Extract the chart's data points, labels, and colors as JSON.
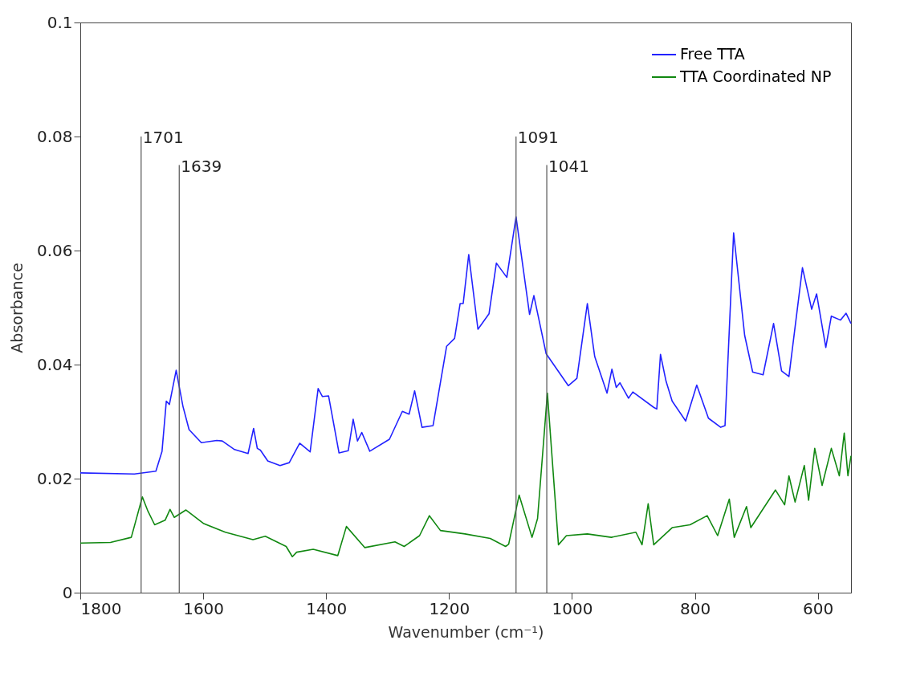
{
  "chart_data": {
    "type": "line",
    "xlabel": "Wavenumber (cm⁻¹)",
    "ylabel": "Absorbance",
    "xlim": [
      1800,
      546
    ],
    "xticks": [
      1800,
      1600,
      1400,
      1200,
      1000,
      800,
      600
    ],
    "ylim": [
      0,
      0.1
    ],
    "yticks": [
      0,
      0.02,
      0.04,
      0.06,
      0.08,
      0.1
    ],
    "grid": false,
    "legend": "top right",
    "line_style": "solid",
    "ref_lines": [
      {
        "axis": "x",
        "value": 1701,
        "label": "1701",
        "color": "#555555"
      },
      {
        "axis": "x",
        "value": 1639,
        "label": "1639",
        "color": "#555555"
      },
      {
        "axis": "x",
        "value": 1091,
        "label": "1091",
        "color": "#555555"
      },
      {
        "axis": "x",
        "value": 1041,
        "label": "1041",
        "color": "#555555"
      }
    ],
    "series": [
      {
        "name": "Free TTA",
        "color": "#2222ff",
        "x": [
          1800,
          1712,
          1677,
          1667,
          1660,
          1655,
          1644,
          1633,
          1623,
          1603,
          1578,
          1569,
          1549,
          1527,
          1518,
          1512,
          1507,
          1495,
          1475,
          1460,
          1443,
          1426,
          1413,
          1406,
          1396,
          1379,
          1364,
          1356,
          1349,
          1342,
          1329,
          1297,
          1276,
          1265,
          1256,
          1244,
          1226,
          1204,
          1191,
          1182,
          1177,
          1168,
          1153,
          1135,
          1123,
          1106,
          1091,
          1069,
          1062,
          1042,
          1006,
          992,
          975,
          963,
          943,
          935,
          928,
          922,
          908,
          901,
          867,
          862,
          856,
          847,
          837,
          815,
          797,
          778,
          758,
          751,
          737,
          719,
          706,
          689,
          672,
          659,
          647,
          625,
          610,
          602,
          587,
          578,
          563,
          554,
          546
        ],
        "values": [
          0.021,
          0.0208,
          0.0213,
          0.0248,
          0.0336,
          0.033,
          0.039,
          0.0327,
          0.0286,
          0.0263,
          0.0267,
          0.0266,
          0.0251,
          0.0244,
          0.0288,
          0.0253,
          0.025,
          0.0231,
          0.0223,
          0.0228,
          0.0262,
          0.0247,
          0.0358,
          0.0344,
          0.0345,
          0.0245,
          0.0249,
          0.0304,
          0.0266,
          0.0281,
          0.0248,
          0.0269,
          0.0318,
          0.0313,
          0.0354,
          0.029,
          0.0293,
          0.0432,
          0.0446,
          0.0507,
          0.0507,
          0.0593,
          0.0462,
          0.0489,
          0.0578,
          0.0553,
          0.0659,
          0.0488,
          0.0521,
          0.0419,
          0.0363,
          0.0376,
          0.0507,
          0.0414,
          0.035,
          0.0392,
          0.036,
          0.0368,
          0.0341,
          0.0352,
          0.0325,
          0.0322,
          0.0418,
          0.0371,
          0.0336,
          0.0301,
          0.0364,
          0.0306,
          0.029,
          0.0293,
          0.0631,
          0.0451,
          0.0387,
          0.0382,
          0.0472,
          0.0389,
          0.0379,
          0.057,
          0.0497,
          0.0524,
          0.043,
          0.0485,
          0.0478,
          0.049,
          0.0472
        ]
      },
      {
        "name": "TTA Coordinated NP",
        "color": "#118811",
        "x": [
          1800,
          1751,
          1717,
          1699,
          1690,
          1679,
          1662,
          1654,
          1647,
          1628,
          1599,
          1564,
          1519,
          1499,
          1465,
          1455,
          1448,
          1421,
          1381,
          1367,
          1337,
          1288,
          1273,
          1248,
          1232,
          1214,
          1174,
          1133,
          1108,
          1103,
          1086,
          1065,
          1056,
          1040,
          1022,
          1009,
          975,
          936,
          896,
          886,
          876,
          867,
          837,
          808,
          780,
          763,
          744,
          736,
          716,
          709,
          669,
          654,
          647,
          637,
          622,
          615,
          605,
          593,
          578,
          565,
          557,
          551,
          546
        ],
        "values": [
          0.0087,
          0.0088,
          0.0097,
          0.0168,
          0.0143,
          0.0119,
          0.0127,
          0.0146,
          0.0132,
          0.0145,
          0.0121,
          0.0106,
          0.0093,
          0.0099,
          0.0081,
          0.0063,
          0.0071,
          0.0076,
          0.0065,
          0.0116,
          0.0079,
          0.0089,
          0.0081,
          0.01,
          0.0135,
          0.0109,
          0.0103,
          0.0095,
          0.0081,
          0.0085,
          0.0171,
          0.0097,
          0.013,
          0.035,
          0.0084,
          0.01,
          0.0103,
          0.0097,
          0.0106,
          0.0084,
          0.0156,
          0.0084,
          0.0114,
          0.0119,
          0.0135,
          0.01,
          0.0164,
          0.0097,
          0.0151,
          0.0114,
          0.018,
          0.0154,
          0.0205,
          0.0159,
          0.0223,
          0.0162,
          0.0253,
          0.0188,
          0.0253,
          0.0205,
          0.028,
          0.0205,
          0.024
        ]
      }
    ]
  }
}
